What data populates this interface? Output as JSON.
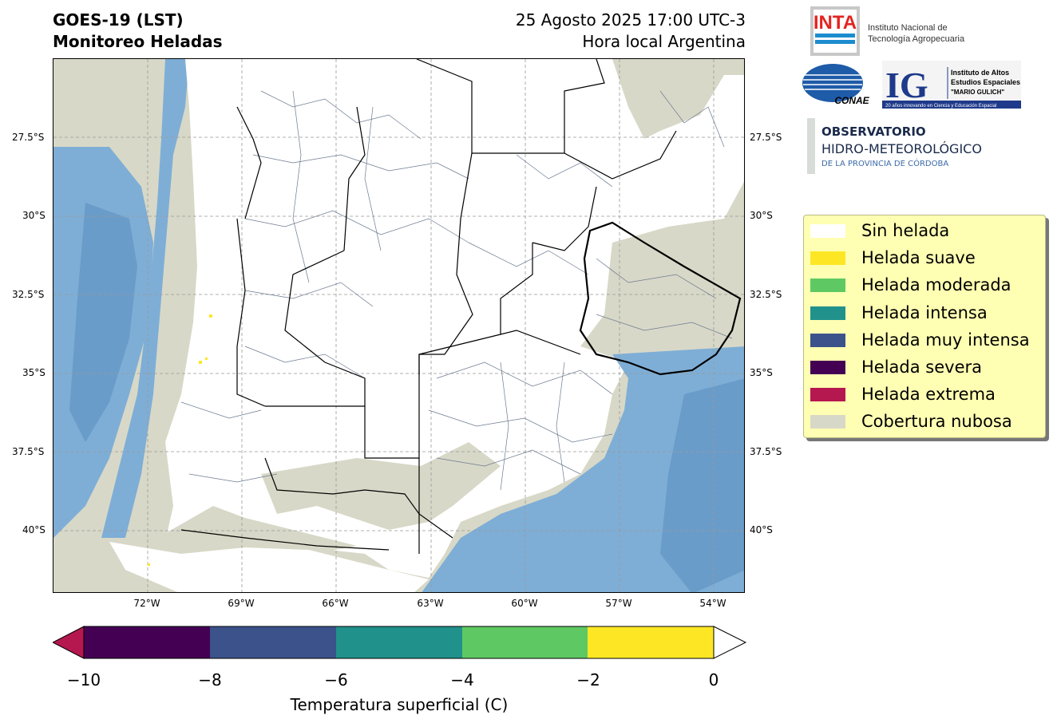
{
  "header": {
    "title_line1": "GOES-19 (LST)",
    "title_line2": "Monitoreo Heladas",
    "date_line1": "25 Agosto 2025 17:00 UTC-3",
    "date_line2": "Hora local Argentina"
  },
  "logos": {
    "inta_mark": "INTA",
    "inta_name_line1": "Instituto Nacional de",
    "inta_name_line2": "Tecnología Agropecuaria",
    "conae_mark": "CONAE",
    "ig_mark": "IG",
    "ig_line1": "Instituto de Altos",
    "ig_line2": "Estudios Espaciales",
    "ig_line3": "\"MARIO GULICH\"",
    "ig_tagline": "20 años innovando en Ciencia y Educación Espacial",
    "obs_line1": "OBSERVATORIO",
    "obs_line2": "HIDRO-METEOROLÓGICO",
    "obs_line3": "DE LA PROVINCIA DE CÓRDOBA"
  },
  "map": {
    "lat_labels": [
      "27.5°S",
      "30°S",
      "32.5°S",
      "35°S",
      "37.5°S",
      "40°S"
    ],
    "lon_labels": [
      "72°W",
      "69°W",
      "66°W",
      "63°W",
      "60°W",
      "57°W",
      "54°W"
    ],
    "extent": {
      "lon_min": -75,
      "lon_max": -53,
      "lat_min": -42,
      "lat_max": -25
    },
    "colors": {
      "cloud": "#d8d8c8",
      "no_frost": "#ffffff",
      "water": "#7eaed6",
      "water_dark": "#6a9cc9",
      "borders": "#000000",
      "departments": "#6b7a8f"
    }
  },
  "legend": {
    "items": [
      {
        "label": "Sin helada",
        "color": "#ffffff"
      },
      {
        "label": "Helada suave",
        "color": "#fde725"
      },
      {
        "label": "Helada moderada",
        "color": "#5ec962"
      },
      {
        "label": "Helada intensa",
        "color": "#21918c"
      },
      {
        "label": "Helada muy intensa",
        "color": "#3b528b"
      },
      {
        "label": "Helada severa",
        "color": "#440154"
      },
      {
        "label": "Helada extrema",
        "color": "#b5174f"
      },
      {
        "label": "Cobertura nubosa",
        "color": "#d8d8c8"
      }
    ]
  },
  "colorbar": {
    "label": "Temperatura superficial (C)",
    "ticks": [
      "−10",
      "−8",
      "−6",
      "−4",
      "−2",
      "0"
    ],
    "bins": [
      {
        "from": -10,
        "to": -8,
        "color": "#440154"
      },
      {
        "from": -8,
        "to": -6,
        "color": "#3b528b"
      },
      {
        "from": -6,
        "to": -4,
        "color": "#21918c"
      },
      {
        "from": -4,
        "to": -2,
        "color": "#5ec962"
      },
      {
        "from": -2,
        "to": 0,
        "color": "#fde725"
      }
    ],
    "under_color": "#b5174f",
    "over_color": "#ffffff"
  }
}
